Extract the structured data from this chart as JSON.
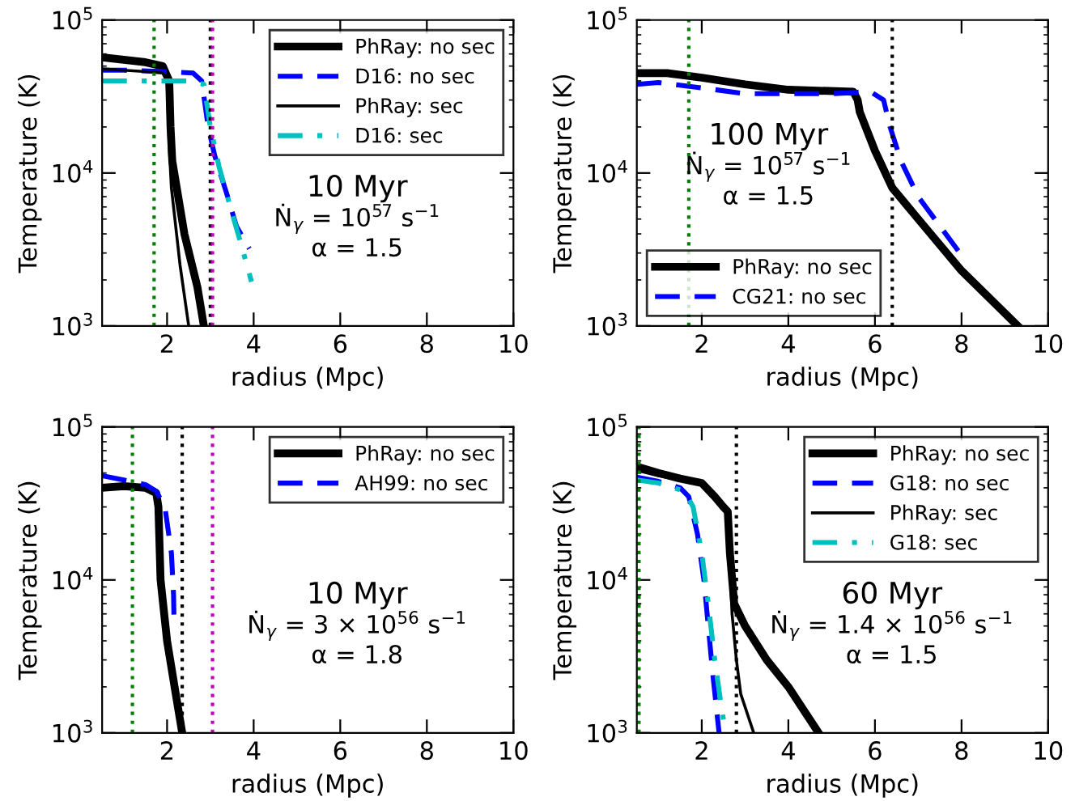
{
  "chart_data": [
    {
      "type": "line",
      "xlabel": "radius (Mpc)",
      "ylabel": "Temperature (K)",
      "log": "y",
      "xlim": [
        0.5,
        10
      ],
      "ylim": [
        1000,
        100000
      ],
      "xticks": [
        2,
        4,
        6,
        8,
        10
      ],
      "yticks": [
        {
          "value": 1000,
          "label": "10$^{3}$"
        },
        {
          "value": 10000,
          "label": "10$^{4}$"
        },
        {
          "value": 100000,
          "label": "10$^{5}$"
        }
      ],
      "grid": false,
      "legend": "top right",
      "annotations": [
        "10 Myr",
        "Ṅ$_{γ}$ = 10$^{57}$ s$^{−1}$",
        "α = 1.5"
      ],
      "ref_lines": [
        {
          "axis": "x",
          "value": 1.7,
          "color": "#008000",
          "line_style": "dotted"
        },
        {
          "axis": "x",
          "value": 3.0,
          "color": "#000000",
          "line_style": "dotted"
        },
        {
          "axis": "x",
          "value": 3.05,
          "color": "#bf00bf",
          "line_style": "dotted"
        }
      ],
      "series": [
        {
          "name": "PhRay: no sec",
          "color": "#000000",
          "line_style": "solid",
          "x": [
            0.5,
            1.0,
            1.5,
            1.9,
            2.05,
            2.08,
            2.12,
            2.4,
            2.7,
            2.85
          ],
          "values": [
            57000,
            55000,
            53000,
            50000,
            40000,
            20000,
            12000,
            4000,
            1800,
            1000
          ]
        },
        {
          "name": "D16: no sec",
          "color": "#0000ff",
          "line_style": "dashed",
          "x": [
            0.5,
            1.0,
            2.0,
            2.6,
            2.8,
            2.95,
            3.1,
            3.4,
            3.6,
            3.9
          ],
          "values": [
            47000,
            47000,
            46000,
            45000,
            40000,
            20000,
            13000,
            7000,
            4500,
            3200
          ]
        },
        {
          "name": "PhRay: sec",
          "color": "#000000",
          "line_style": "solid",
          "x": [
            0.5,
            1.0,
            1.5,
            1.9,
            2.0,
            2.05,
            2.1,
            2.3,
            2.5
          ],
          "values": [
            48000,
            47000,
            46000,
            45000,
            40000,
            15000,
            8000,
            2500,
            1000
          ]
        },
        {
          "name": "D16: sec",
          "color": "#00bfbf",
          "line_style": "dashdot",
          "x": [
            0.5,
            2.5,
            2.85,
            3.0,
            3.2,
            3.5,
            3.7,
            3.95
          ],
          "values": [
            40000,
            40000,
            38000,
            20000,
            11000,
            5500,
            3500,
            1950
          ]
        }
      ]
    },
    {
      "type": "line",
      "xlabel": "radius (Mpc)",
      "ylabel": "Temperature (K)",
      "log": "y",
      "xlim": [
        0.5,
        10
      ],
      "ylim": [
        1000,
        100000
      ],
      "xticks": [
        2,
        4,
        6,
        8,
        10
      ],
      "yticks": [
        {
          "value": 1000,
          "label": "10$^{3}$"
        },
        {
          "value": 10000,
          "label": "10$^{4}$"
        },
        {
          "value": 100000,
          "label": "10$^{5}$"
        }
      ],
      "grid": false,
      "legend": "bottom left",
      "annotations": [
        "100 Myr",
        "Ṅ$_{γ}$ = 10$^{57}$ s$^{−1}$",
        "α = 1.5"
      ],
      "ref_lines": [
        {
          "axis": "x",
          "value": 1.7,
          "color": "#008000",
          "line_style": "dotted"
        },
        {
          "axis": "x",
          "value": 6.4,
          "color": "#000000",
          "line_style": "dotted"
        }
      ],
      "series": [
        {
          "name": "PhRay: no sec",
          "color": "#000000",
          "line_style": "solid",
          "x": [
            0.5,
            1.2,
            2,
            3,
            4,
            5.5,
            5.6,
            5.65,
            6,
            6.4,
            7,
            8,
            9.3
          ],
          "values": [
            45000,
            45000,
            42000,
            38000,
            35000,
            34000,
            30000,
            25000,
            14000,
            8000,
            5000,
            2300,
            1000
          ]
        },
        {
          "name": "CG21: no sec",
          "color": "#0000ff",
          "line_style": "dashed",
          "x": [
            0.5,
            1,
            2,
            3,
            4,
            5,
            5.9,
            6.2,
            6.35,
            6.6,
            7,
            7.5,
            8
          ],
          "values": [
            38000,
            39000,
            36000,
            33000,
            33000,
            33000,
            34000,
            30000,
            20000,
            12000,
            7000,
            4500,
            2900
          ]
        }
      ]
    },
    {
      "type": "line",
      "xlabel": "radius (Mpc)",
      "ylabel": "Temperature (K)",
      "log": "y",
      "xlim": [
        0.5,
        10
      ],
      "ylim": [
        1000,
        100000
      ],
      "xticks": [
        2,
        4,
        6,
        8,
        10
      ],
      "yticks": [
        {
          "value": 1000,
          "label": "10$^{3}$"
        },
        {
          "value": 10000,
          "label": "10$^{4}$"
        },
        {
          "value": 100000,
          "label": "10$^{5}$"
        }
      ],
      "grid": false,
      "legend": "top right",
      "annotations": [
        "10 Myr",
        "Ṅ$_{γ}$ = 3 × 10$^{56}$ s$^{−1}$",
        "α = 1.8"
      ],
      "ref_lines": [
        {
          "axis": "x",
          "value": 1.2,
          "color": "#008000",
          "line_style": "dotted"
        },
        {
          "axis": "x",
          "value": 2.35,
          "color": "#000000",
          "line_style": "dotted"
        },
        {
          "axis": "x",
          "value": 3.05,
          "color": "#bf00bf",
          "line_style": "dotted"
        }
      ],
      "series": [
        {
          "name": "PhRay: no sec",
          "color": "#000000",
          "line_style": "solid",
          "x": [
            0.5,
            1,
            1.5,
            1.75,
            1.8,
            1.85,
            2,
            2.2,
            2.35
          ],
          "values": [
            40000,
            41000,
            40000,
            37000,
            30000,
            10000,
            4000,
            1800,
            1000
          ]
        },
        {
          "name": "AH99: no sec",
          "color": "#0000ff",
          "line_style": "dashed",
          "x": [
            0.5,
            1,
            1.5,
            1.75,
            1.95,
            2.1,
            2.15,
            2.16
          ],
          "values": [
            48000,
            45000,
            42000,
            38000,
            30000,
            15000,
            8000,
            5600
          ]
        }
      ]
    },
    {
      "type": "line",
      "xlabel": "radius (Mpc)",
      "ylabel": "Temperature (K)",
      "log": "y",
      "xlim": [
        0.5,
        10
      ],
      "ylim": [
        1000,
        100000
      ],
      "xticks": [
        2,
        4,
        6,
        8,
        10
      ],
      "yticks": [
        {
          "value": 1000,
          "label": "10$^{3}$"
        },
        {
          "value": 10000,
          "label": "10$^{4}$"
        },
        {
          "value": 100000,
          "label": "10$^{5}$"
        }
      ],
      "grid": false,
      "legend": "top right",
      "annotations": [
        "60 Myr",
        "Ṅ$_{γ}$ = 1.4 × 10$^{56}$ s$^{−1}$",
        "α = 1.5"
      ],
      "ref_lines": [
        {
          "axis": "x",
          "value": 0.55,
          "color": "#008000",
          "line_style": "dotted"
        },
        {
          "axis": "x",
          "value": 2.8,
          "color": "#000000",
          "line_style": "dotted"
        }
      ],
      "series": [
        {
          "name": "PhRay: no sec",
          "color": "#000000",
          "line_style": "solid",
          "x": [
            0.5,
            1,
            1.5,
            2,
            2.3,
            2.5,
            2.6,
            2.65,
            2.75,
            3,
            3.5,
            4,
            4.7
          ],
          "values": [
            55000,
            50000,
            46000,
            43000,
            35000,
            30000,
            28000,
            15000,
            7000,
            5000,
            3000,
            2000,
            1000
          ]
        },
        {
          "name": "G18: no sec",
          "color": "#0000ff",
          "line_style": "dashed",
          "x": [
            0.5,
            1,
            1.5,
            1.7,
            1.9,
            2.05,
            2.15,
            2.25,
            2.4
          ],
          "values": [
            47000,
            44000,
            40000,
            35000,
            20000,
            10000,
            5000,
            2500,
            1000
          ]
        },
        {
          "name": "PhRay: sec",
          "color": "#000000",
          "line_style": "solid",
          "x": [
            0.5,
            1,
            1.5,
            2,
            2.3,
            2.5,
            2.6,
            2.7,
            2.8,
            2.9,
            3.2
          ],
          "values": [
            52000,
            48000,
            45000,
            42000,
            35000,
            30000,
            27000,
            6000,
            3000,
            1800,
            1000
          ]
        },
        {
          "name": "G18: sec",
          "color": "#00bfbf",
          "line_style": "dashdot",
          "x": [
            0.5,
            1,
            1.6,
            1.8,
            2.0,
            2.15,
            2.3,
            2.45,
            2.55
          ],
          "values": [
            45000,
            43000,
            38000,
            30000,
            15000,
            7000,
            3000,
            1500,
            1000
          ]
        }
      ]
    }
  ]
}
